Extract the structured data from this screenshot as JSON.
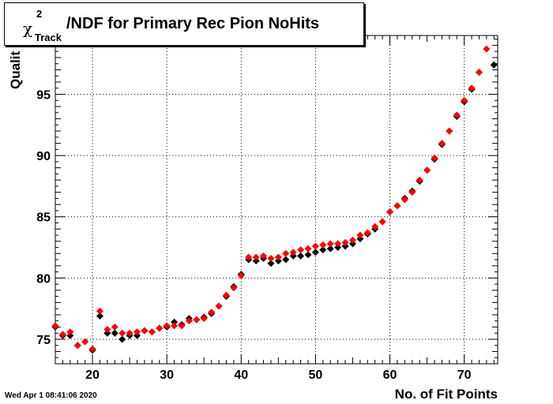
{
  "title": {
    "chi": "χ",
    "superscript": "2",
    "subscript": "Track",
    "text": "/NDF for Primary Rec Pion NoHits"
  },
  "timestamp": "Wed Apr  1 08:41:06 2020",
  "chart_data": {
    "type": "scatter",
    "xlabel": "No. of Fit Points",
    "ylabel": "Qualit",
    "xlim": [
      15,
      74.5
    ],
    "ylim": [
      73,
      99.8
    ],
    "grid": true,
    "x_ticks": [
      20,
      30,
      40,
      50,
      60,
      70
    ],
    "y_ticks": [
      75,
      80,
      85,
      90,
      95
    ],
    "colors": {
      "series_black": "#000000",
      "series_red": "#ff0000"
    },
    "series": [
      {
        "color": "#000000",
        "points": [
          [
            15,
            76.0
          ],
          [
            16,
            75.3
          ],
          [
            17,
            75.3
          ],
          [
            18,
            74.5
          ],
          [
            19,
            74.8
          ],
          [
            20,
            74.1
          ],
          [
            21,
            76.9
          ],
          [
            22,
            75.5
          ],
          [
            23,
            75.5
          ],
          [
            24,
            75.0
          ],
          [
            25,
            75.3
          ],
          [
            26,
            75.3
          ],
          [
            27,
            75.7
          ],
          [
            28,
            75.6
          ],
          [
            29,
            75.9
          ],
          [
            30,
            76.0
          ],
          [
            31,
            76.4
          ],
          [
            32,
            76.2
          ],
          [
            33,
            76.7
          ],
          [
            34,
            76.6
          ],
          [
            35,
            76.8
          ],
          [
            36,
            77.1
          ],
          [
            37,
            77.7
          ],
          [
            38,
            78.5
          ],
          [
            39,
            79.3
          ],
          [
            40,
            80.3
          ],
          [
            41,
            81.5
          ],
          [
            42,
            81.4
          ],
          [
            43,
            81.6
          ],
          [
            44,
            81.2
          ],
          [
            45,
            81.4
          ],
          [
            46,
            81.5
          ],
          [
            47,
            81.8
          ],
          [
            48,
            81.8
          ],
          [
            49,
            81.9
          ],
          [
            50,
            82.1
          ],
          [
            51,
            82.3
          ],
          [
            52,
            82.4
          ],
          [
            53,
            82.5
          ],
          [
            54,
            82.6
          ],
          [
            55,
            82.8
          ],
          [
            56,
            83.2
          ],
          [
            57,
            83.6
          ],
          [
            58,
            84.0
          ],
          [
            59,
            84.6
          ],
          [
            60,
            85.4
          ],
          [
            61,
            85.9
          ],
          [
            62,
            86.5
          ],
          [
            63,
            87.1
          ],
          [
            64,
            87.9
          ],
          [
            65,
            88.8
          ],
          [
            66,
            89.7
          ],
          [
            67,
            90.9
          ],
          [
            68,
            92.0
          ],
          [
            69,
            93.2
          ],
          [
            70,
            94.4
          ],
          [
            71,
            95.4
          ],
          [
            72,
            96.8
          ],
          [
            74,
            97.4
          ]
        ]
      },
      {
        "color": "#ff0000",
        "points": [
          [
            15,
            76.1
          ],
          [
            16,
            75.4
          ],
          [
            17,
            75.6
          ],
          [
            18,
            74.5
          ],
          [
            19,
            74.8
          ],
          [
            20,
            74.2
          ],
          [
            21,
            77.3
          ],
          [
            22,
            75.8
          ],
          [
            23,
            76.0
          ],
          [
            24,
            75.5
          ],
          [
            25,
            75.5
          ],
          [
            26,
            75.6
          ],
          [
            27,
            75.7
          ],
          [
            28,
            75.6
          ],
          [
            29,
            75.9
          ],
          [
            30,
            76.1
          ],
          [
            31,
            76.1
          ],
          [
            32,
            76.1
          ],
          [
            33,
            76.5
          ],
          [
            34,
            76.6
          ],
          [
            35,
            76.7
          ],
          [
            36,
            77.2
          ],
          [
            37,
            77.7
          ],
          [
            38,
            78.6
          ],
          [
            39,
            79.2
          ],
          [
            40,
            80.2
          ],
          [
            41,
            81.7
          ],
          [
            42,
            81.7
          ],
          [
            43,
            81.8
          ],
          [
            44,
            81.6
          ],
          [
            45,
            81.7
          ],
          [
            46,
            82.0
          ],
          [
            47,
            82.1
          ],
          [
            48,
            82.3
          ],
          [
            49,
            82.4
          ],
          [
            50,
            82.6
          ],
          [
            51,
            82.7
          ],
          [
            52,
            82.8
          ],
          [
            53,
            82.8
          ],
          [
            54,
            82.9
          ],
          [
            55,
            83.1
          ],
          [
            56,
            83.5
          ],
          [
            57,
            83.7
          ],
          [
            58,
            84.2
          ],
          [
            59,
            84.6
          ],
          [
            60,
            85.4
          ],
          [
            61,
            85.9
          ],
          [
            62,
            86.4
          ],
          [
            63,
            87.0
          ],
          [
            64,
            88.0
          ],
          [
            65,
            88.8
          ],
          [
            66,
            89.8
          ],
          [
            67,
            91.0
          ],
          [
            68,
            92.0
          ],
          [
            69,
            93.3
          ],
          [
            70,
            94.5
          ],
          [
            71,
            95.5
          ],
          [
            72,
            96.8
          ],
          [
            73,
            98.7
          ]
        ]
      }
    ]
  }
}
